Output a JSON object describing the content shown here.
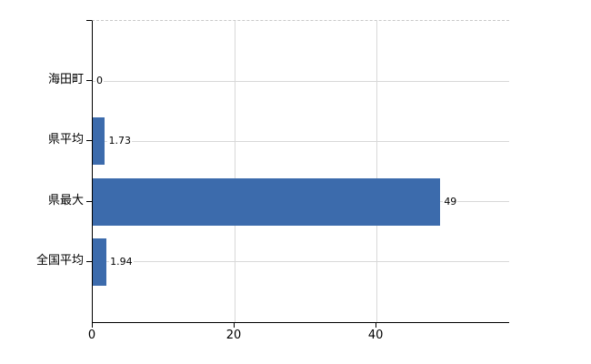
{
  "chart_data": {
    "type": "bar",
    "orientation": "horizontal",
    "title": "",
    "categories": [
      "海田町",
      "県平均",
      "県最大",
      "全国平均"
    ],
    "values": [
      0,
      1.73,
      49,
      1.94
    ],
    "value_labels": [
      "0",
      "1.73",
      "49",
      "1.94"
    ],
    "xlabel": "",
    "ylabel": "",
    "xlim": [
      0,
      58.7
    ],
    "xticks": [
      0,
      20,
      40
    ],
    "xtick_labels": [
      "0",
      "20",
      "40"
    ],
    "grid": true,
    "legend": false,
    "bar_color": "#3c6bac",
    "grid_color": "#d8d8d8",
    "axis_color": "#000000",
    "label_color": "#000000",
    "background_color": "#ffffff"
  }
}
